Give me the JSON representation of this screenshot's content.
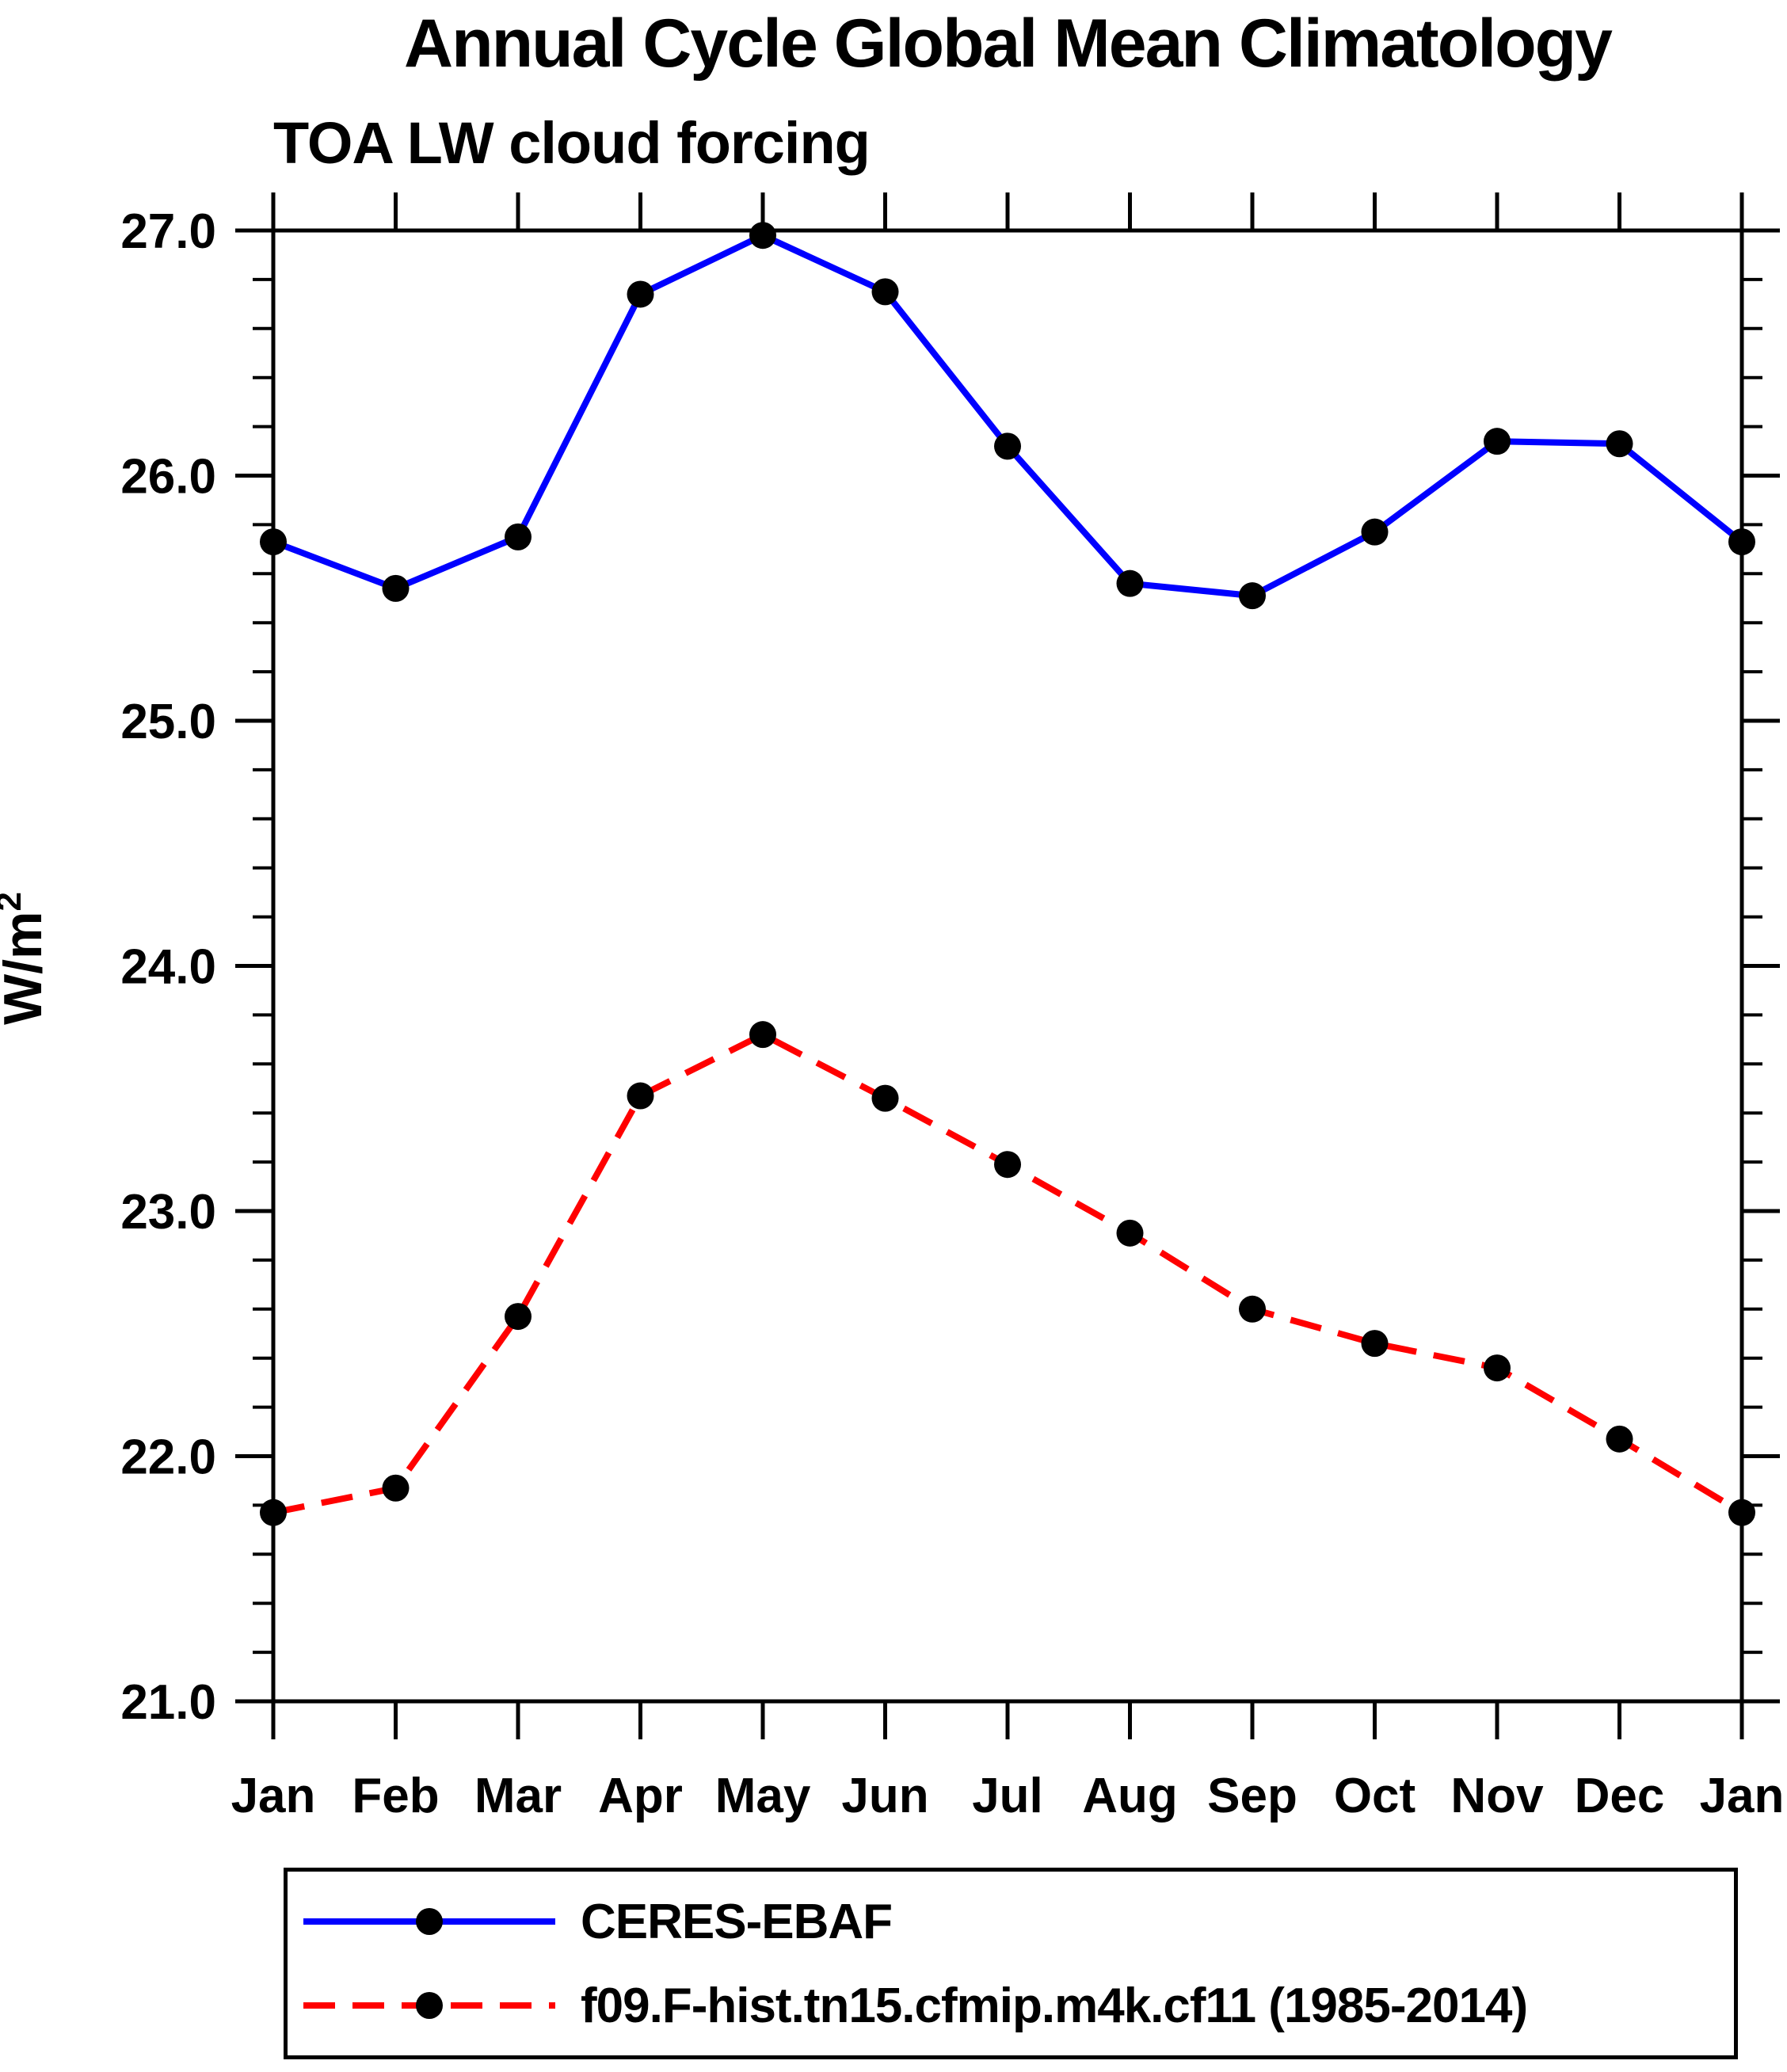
{
  "chart": {
    "title": "Annual Cycle Global Mean Climatology",
    "subtitle": "TOA LW cloud forcing"
  },
  "chart_data": {
    "type": "line",
    "title": "Annual Cycle Global Mean Climatology",
    "subtitle": "TOA LW cloud forcing",
    "ylabel_base": "W/m",
    "ylabel_sup": "2",
    "categories": [
      "Jan",
      "Feb",
      "Mar",
      "Apr",
      "May",
      "Jun",
      "Jul",
      "Aug",
      "Sep",
      "Oct",
      "Nov",
      "Dec",
      "Jan"
    ],
    "ylim": [
      21.0,
      27.0
    ],
    "ytick_major": 1.0,
    "ytick_minor": 0.2,
    "ytick_labels": [
      "21.0",
      "22.0",
      "23.0",
      "24.0",
      "25.0",
      "26.0",
      "27.0"
    ],
    "grid": false,
    "legend_position": "bottom",
    "axis_color": "#000000",
    "marker_color": "#000000",
    "series": [
      {
        "name": "CERES-EBAF",
        "color": "#0000FF",
        "style": "solid",
        "marker": "circle",
        "values": [
          25.73,
          25.54,
          25.75,
          26.74,
          26.98,
          26.75,
          26.12,
          25.56,
          25.51,
          25.77,
          26.14,
          26.13,
          25.73
        ]
      },
      {
        "name": "f09.F-hist.tn15.cfmip.m4k.cf11 (1985-2014)",
        "color": "#FF0000",
        "style": "dashed",
        "marker": "circle",
        "values": [
          21.77,
          21.87,
          22.57,
          23.47,
          23.72,
          23.46,
          23.19,
          22.91,
          22.6,
          22.46,
          22.36,
          22.07,
          21.77
        ]
      }
    ]
  }
}
